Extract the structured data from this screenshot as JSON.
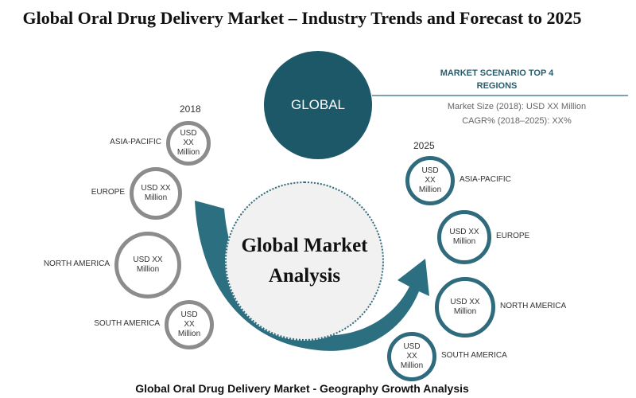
{
  "header": {
    "title": "Global Oral Drug Delivery Market – Industry Trends and Forecast to 2025"
  },
  "center": {
    "label": "GLOBAL"
  },
  "scenario": {
    "heading": "MARKET SCENARIO TOP 4 REGIONS",
    "lines": [
      "Market Size (2018): USD XX Million",
      "CAGR% (2018–2025): XX%"
    ]
  },
  "left": {
    "year": "2018",
    "regions": [
      {
        "name": "ASIA-PACIFIC",
        "value": "USD XX Million"
      },
      {
        "name": "EUROPE",
        "value": "USD XX Million"
      },
      {
        "name": "NORTH AMERICA",
        "value": "USD XX Million"
      },
      {
        "name": "SOUTH AMERICA",
        "value": "USD XX Million"
      }
    ]
  },
  "right": {
    "year": "2025",
    "regions": [
      {
        "name": "ASIA-PACIFIC",
        "value": "USD XX Million"
      },
      {
        "name": "EUROPE",
        "value": "USD XX Million"
      },
      {
        "name": "NORTH AMERICA",
        "value": "USD XX Million"
      },
      {
        "name": "SOUTH AMERICA",
        "value": "USD XX Million"
      }
    ]
  },
  "hub": {
    "label": "Global Market Analysis"
  },
  "caption": "Global Oral Drug Delivery Market - Geography Growth Analysis"
}
